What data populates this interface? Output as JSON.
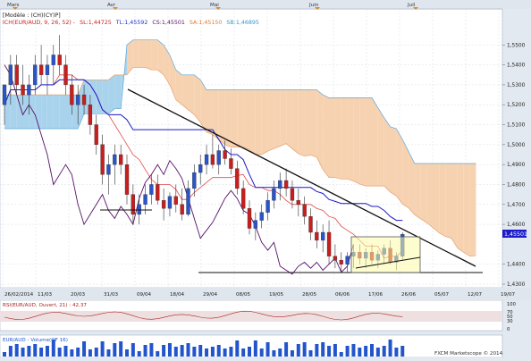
{
  "chart_data": [
    {
      "type": "candlestick",
      "instrument_label": "[Modèle : (CH)(CY)P]",
      "indicator_label": "ICH(EUR/AUD, 9, 26, 52) -",
      "indicator_values": [
        {
          "name": "SL",
          "value": "1,44725",
          "color": "#cc2222"
        },
        {
          "name": "TL",
          "value": "1,45592",
          "color": "#2233cc"
        },
        {
          "name": "CS",
          "value": "1,45501",
          "color": "#551166"
        },
        {
          "name": "SA",
          "value": "1,45150",
          "color": "#e07a30"
        },
        {
          "name": "SB",
          "value": "1,46895",
          "color": "#3399cc"
        }
      ],
      "month_labels": [
        "Mars",
        "Avr",
        "Mai",
        "Juin",
        "Juil"
      ],
      "date_labels": [
        "26/02/2014",
        "11/03",
        "20/03",
        "31/03",
        "09/04",
        "18/04",
        "29/04",
        "08/05",
        "19/05",
        "28/05",
        "06/06",
        "17/06",
        "26/06",
        "05/07",
        "12/07",
        "19/07"
      ],
      "y_ticks": [
        "1,5500",
        "1,5400",
        "1,5300",
        "1,5200",
        "1,5100",
        "1,5000",
        "1,4900",
        "1,4800",
        "1,4700",
        "1,4600",
        "1,4400",
        "1,4300"
      ],
      "last_price_label": "1,45501",
      "y_range": [
        1.43,
        1.56
      ],
      "colors": {
        "bull": "#2a55c8",
        "bear": "#c81e1e",
        "tenkan": "#e04848",
        "kijun": "#1a1ac8",
        "chikou": "#551166",
        "cloud_bull": "#a9d3ec",
        "cloud_bear": "#f6d2b0"
      },
      "candles": [
        [
          1.52,
          1.53,
          1.51,
          1.53
        ],
        [
          1.53,
          1.545,
          1.52,
          1.54
        ],
        [
          1.54,
          1.545,
          1.525,
          1.53
        ],
        [
          1.53,
          1.54,
          1.52,
          1.525
        ],
        [
          1.525,
          1.535,
          1.515,
          1.53
        ],
        [
          1.53,
          1.545,
          1.525,
          1.54
        ],
        [
          1.54,
          1.55,
          1.53,
          1.535
        ],
        [
          1.535,
          1.545,
          1.525,
          1.54
        ],
        [
          1.54,
          1.55,
          1.53,
          1.545
        ],
        [
          1.545,
          1.555,
          1.535,
          1.54
        ],
        [
          1.54,
          1.545,
          1.525,
          1.53
        ],
        [
          1.53,
          1.535,
          1.515,
          1.52
        ],
        [
          1.52,
          1.53,
          1.51,
          1.525
        ],
        [
          1.525,
          1.53,
          1.515,
          1.52
        ],
        [
          1.52,
          1.525,
          1.505,
          1.51
        ],
        [
          1.51,
          1.515,
          1.495,
          1.5
        ],
        [
          1.5,
          1.505,
          1.48,
          1.485
        ],
        [
          1.485,
          1.495,
          1.475,
          1.49
        ],
        [
          1.49,
          1.5,
          1.48,
          1.495
        ],
        [
          1.495,
          1.5,
          1.485,
          1.49
        ],
        [
          1.49,
          1.495,
          1.47,
          1.475
        ],
        [
          1.475,
          1.48,
          1.46,
          1.465
        ],
        [
          1.465,
          1.475,
          1.46,
          1.47
        ],
        [
          1.47,
          1.48,
          1.465,
          1.475
        ],
        [
          1.475,
          1.485,
          1.47,
          1.48
        ],
        [
          1.48,
          1.485,
          1.47,
          1.472
        ],
        [
          1.472,
          1.478,
          1.462,
          1.468
        ],
        [
          1.468,
          1.476,
          1.464,
          1.474
        ],
        [
          1.474,
          1.48,
          1.466,
          1.47
        ],
        [
          1.47,
          1.478,
          1.462,
          1.465
        ],
        [
          1.465,
          1.482,
          1.464,
          1.478
        ],
        [
          1.478,
          1.49,
          1.474,
          1.486
        ],
        [
          1.486,
          1.495,
          1.48,
          1.49
        ],
        [
          1.49,
          1.5,
          1.485,
          1.495
        ],
        [
          1.495,
          1.505,
          1.488,
          1.49
        ],
        [
          1.49,
          1.5,
          1.485,
          1.497
        ],
        [
          1.497,
          1.502,
          1.49,
          1.493
        ],
        [
          1.493,
          1.498,
          1.485,
          1.488
        ],
        [
          1.488,
          1.492,
          1.475,
          1.478
        ],
        [
          1.478,
          1.482,
          1.465,
          1.468
        ],
        [
          1.468,
          1.472,
          1.455,
          1.458
        ],
        [
          1.458,
          1.466,
          1.452,
          1.462
        ],
        [
          1.462,
          1.47,
          1.458,
          1.466
        ],
        [
          1.466,
          1.476,
          1.462,
          1.472
        ],
        [
          1.472,
          1.482,
          1.468,
          1.478
        ],
        [
          1.478,
          1.486,
          1.472,
          1.482
        ],
        [
          1.482,
          1.488,
          1.474,
          1.478
        ],
        [
          1.478,
          1.482,
          1.468,
          1.472
        ],
        [
          1.472,
          1.478,
          1.464,
          1.47
        ],
        [
          1.47,
          1.474,
          1.46,
          1.464
        ],
        [
          1.464,
          1.468,
          1.452,
          1.456
        ],
        [
          1.456,
          1.462,
          1.448,
          1.452
        ],
        [
          1.452,
          1.46,
          1.446,
          1.456
        ],
        [
          1.456,
          1.462,
          1.44,
          1.444
        ],
        [
          1.444,
          1.45,
          1.438,
          1.442
        ],
        [
          1.442,
          1.446,
          1.436,
          1.44
        ],
        [
          1.44,
          1.446,
          1.436,
          1.444
        ],
        [
          1.444,
          1.45,
          1.438,
          1.446
        ],
        [
          1.446,
          1.45,
          1.44,
          1.443
        ],
        [
          1.443,
          1.448,
          1.438,
          1.446
        ],
        [
          1.446,
          1.45,
          1.44,
          1.442
        ],
        [
          1.442,
          1.447,
          1.438,
          1.445
        ],
        [
          1.445,
          1.45,
          1.44,
          1.448
        ],
        [
          1.448,
          1.452,
          1.44,
          1.441
        ],
        [
          1.441,
          1.446,
          1.437,
          1.444
        ],
        [
          1.444,
          1.456,
          1.442,
          1.455
        ]
      ]
    },
    {
      "type": "line",
      "label": "RSI(EUR/AUD, Ouvert, 21) : 42,37",
      "y_ticks": [
        "100",
        "70",
        "50",
        "30",
        "0"
      ],
      "colors": {
        "line": "#aa2222",
        "band": "#e6d8d8"
      }
    },
    {
      "type": "bar",
      "label": "EUR/AUD - Volume(OF 16)",
      "colors": {
        "bar": "#2255cc"
      },
      "watermark": "FXCM Marketscope © 2014"
    }
  ]
}
